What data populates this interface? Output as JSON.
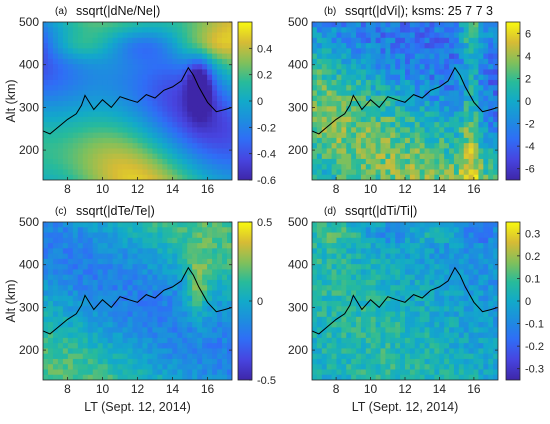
{
  "chart_data": [
    {
      "type": "heatmap",
      "panel_label": "(a)",
      "title": "ssqrt(|dNe/Ne|)",
      "ylabel": "Alt (km)",
      "xlabel": "",
      "x_ticks": [
        "8",
        "10",
        "12",
        "14",
        "16"
      ],
      "y_ticks": [
        "200",
        "300",
        "400",
        "500"
      ],
      "xlim": [
        6.6,
        17.4
      ],
      "ylim": [
        130,
        500
      ],
      "colorbar": {
        "min": -0.6,
        "max": 0.6,
        "ticks": [
          "0.4",
          "0.2",
          "0",
          "-0.2",
          "-0.4",
          "-0.6"
        ]
      },
      "line": {
        "x": [
          6.6,
          7.0,
          7.5,
          8.0,
          8.5,
          8.8,
          9.0,
          9.2,
          9.5,
          10.0,
          10.5,
          11.0,
          11.5,
          12.0,
          12.5,
          13.0,
          13.5,
          14.0,
          14.5,
          14.9,
          15.2,
          15.5,
          16.0,
          16.5,
          17.0,
          17.4
        ],
        "y": [
          245,
          238,
          255,
          272,
          285,
          305,
          328,
          315,
          295,
          318,
          300,
          325,
          318,
          312,
          330,
          322,
          340,
          348,
          362,
          393,
          375,
          348,
          312,
          290,
          295,
          300
        ]
      }
    },
    {
      "type": "heatmap",
      "panel_label": "(b)",
      "title": "ssqrt(|dVi|); ksms: 25  7  7  3",
      "ylabel": "",
      "xlabel": "",
      "x_ticks": [
        "8",
        "10",
        "12",
        "14",
        "16"
      ],
      "y_ticks": [
        "200",
        "300",
        "400",
        "500"
      ],
      "xlim": [
        6.6,
        17.4
      ],
      "ylim": [
        130,
        500
      ],
      "colorbar": {
        "min": -7,
        "max": 7,
        "ticks": [
          "6",
          "4",
          "2",
          "0",
          "-2",
          "-4",
          "-6"
        ]
      },
      "line": {
        "x": [
          6.6,
          7.0,
          7.5,
          8.0,
          8.5,
          8.8,
          9.0,
          9.2,
          9.5,
          10.0,
          10.5,
          11.0,
          11.5,
          12.0,
          12.5,
          13.0,
          13.5,
          14.0,
          14.5,
          14.9,
          15.2,
          15.5,
          16.0,
          16.5,
          17.0,
          17.4
        ],
        "y": [
          245,
          238,
          255,
          272,
          285,
          305,
          328,
          315,
          295,
          318,
          300,
          325,
          318,
          312,
          330,
          322,
          340,
          348,
          362,
          393,
          375,
          348,
          312,
          290,
          295,
          300
        ]
      }
    },
    {
      "type": "heatmap",
      "panel_label": "(c)",
      "title": "ssqrt(|dTe/Te|)",
      "ylabel": "Alt (km)",
      "xlabel": "LT (Sept. 12, 2014)",
      "x_ticks": [
        "8",
        "10",
        "12",
        "14",
        "16"
      ],
      "y_ticks": [
        "200",
        "300",
        "400",
        "500"
      ],
      "xlim": [
        6.6,
        17.4
      ],
      "ylim": [
        130,
        500
      ],
      "colorbar": {
        "min": -0.5,
        "max": 0.5,
        "ticks": [
          "0.5",
          "0",
          "-0.5"
        ]
      },
      "line": {
        "x": [
          6.6,
          7.0,
          7.5,
          8.0,
          8.5,
          8.8,
          9.0,
          9.2,
          9.5,
          10.0,
          10.5,
          11.0,
          11.5,
          12.0,
          12.5,
          13.0,
          13.5,
          14.0,
          14.5,
          14.9,
          15.2,
          15.5,
          16.0,
          16.5,
          17.0,
          17.4
        ],
        "y": [
          245,
          238,
          255,
          272,
          285,
          305,
          328,
          315,
          295,
          318,
          300,
          325,
          318,
          312,
          330,
          322,
          340,
          348,
          362,
          393,
          375,
          348,
          312,
          290,
          295,
          300
        ]
      }
    },
    {
      "type": "heatmap",
      "panel_label": "(d)",
      "title": "ssqrt(|dTi/Ti|)",
      "ylabel": "",
      "xlabel": "LT (Sept. 12, 2014)",
      "x_ticks": [
        "8",
        "10",
        "12",
        "14",
        "16"
      ],
      "y_ticks": [
        "200",
        "300",
        "400",
        "500"
      ],
      "xlim": [
        6.6,
        17.4
      ],
      "ylim": [
        130,
        500
      ],
      "colorbar": {
        "min": -0.35,
        "max": 0.35,
        "ticks": [
          "0.3",
          "0.2",
          "0.1",
          "0",
          "-0.1",
          "-0.2",
          "-0.3"
        ]
      },
      "line": {
        "x": [
          6.6,
          7.0,
          7.5,
          8.0,
          8.5,
          8.8,
          9.0,
          9.2,
          9.5,
          10.0,
          10.5,
          11.0,
          11.5,
          12.0,
          12.5,
          13.0,
          13.5,
          14.0,
          14.5,
          14.9,
          15.2,
          15.5,
          16.0,
          16.5,
          17.0,
          17.4
        ],
        "y": [
          245,
          238,
          255,
          272,
          285,
          305,
          328,
          315,
          295,
          318,
          300,
          325,
          318,
          312,
          330,
          322,
          340,
          348,
          362,
          393,
          375,
          348,
          312,
          290,
          295,
          300
        ]
      }
    }
  ]
}
